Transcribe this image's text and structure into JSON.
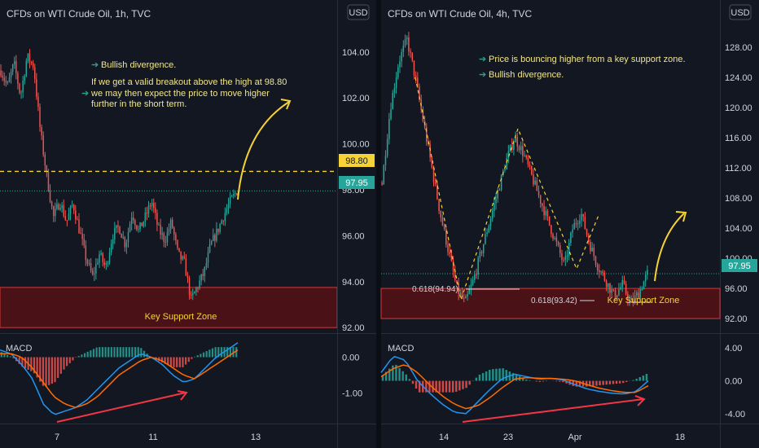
{
  "colors": {
    "bg": "#131722",
    "panel_border": "#2a2e39",
    "up": "#26a69a",
    "down": "#ef5350",
    "text": "#d1d4dc",
    "note": "#f0e68c",
    "zone_fill": "#4a1216",
    "zone_stroke": "#d23a3a",
    "price_badge": "#26a69a",
    "level_badge": "#f5d235",
    "macd_line": "#2196f3",
    "signal_line": "#ff6d00",
    "arrow": "#f5d235",
    "div_arrow": "#f23645"
  },
  "left": {
    "title": "CFDs on WTI Crude Oil, 1h, TVC",
    "currency": "USD",
    "price_ticks": [
      "104.00",
      "102.00",
      "100.00",
      "98.00",
      "96.00",
      "94.00",
      "92.00"
    ],
    "level_label": "98.80",
    "price_label": "97.95",
    "macd_label": "MACD",
    "macd_ticks": [
      "0.00",
      "-1.00"
    ],
    "x_ticks": [
      "7",
      "11",
      "13"
    ],
    "note_1": "Bullish divergence.",
    "note_2_line_1": "If we get a valid breakout above the high at 98.80",
    "note_2_line_2": "we may then expect the price to move higher",
    "note_2_line_3": "further in the short term.",
    "zone_label": "Key Support Zone",
    "chart_data": {
      "type": "candlestick",
      "title": "CFDs on WTI Crude Oil, 1h, TVC",
      "y_range": [
        91.9,
        105.2
      ],
      "levels": {
        "resistance": 98.8,
        "last_price": 97.95
      },
      "support_zone": [
        92.0,
        93.75
      ],
      "close_path": [
        103.2,
        102.5,
        103.5,
        102.1,
        103.8,
        103.4,
        100.6,
        98.6,
        96.8,
        97.5,
        96.6,
        97.4,
        96.2,
        95.0,
        94.2,
        95.2,
        94.6,
        96.0,
        96.4,
        95.6,
        97.0,
        96.2,
        96.8,
        97.5,
        96.3,
        95.8,
        96.6,
        95.2,
        94.8,
        93.2,
        93.8,
        94.4,
        95.6,
        96.2,
        96.9,
        97.5,
        97.95
      ],
      "macd_range": [
        -1.8,
        0.6
      ],
      "macd_path": [
        0.2,
        0.1,
        -0.2,
        -0.6,
        -1.3,
        -1.6,
        -1.5,
        -1.4,
        -1.2,
        -0.9,
        -0.6,
        -0.3,
        -0.1,
        0.1,
        0.0,
        -0.2,
        -0.5,
        -0.7,
        -0.6,
        -0.3,
        0.0,
        0.2,
        0.4
      ],
      "signal_path": [
        0.1,
        0.1,
        0.0,
        -0.3,
        -0.7,
        -1.1,
        -1.3,
        -1.4,
        -1.3,
        -1.1,
        -0.8,
        -0.5,
        -0.3,
        -0.1,
        0.0,
        -0.1,
        -0.3,
        -0.5,
        -0.6,
        -0.4,
        -0.2,
        0.0,
        0.2
      ]
    }
  },
  "right": {
    "title": "CFDs on WTI Crude Oil, 4h, TVC",
    "currency": "USD",
    "price_ticks": [
      "128.00",
      "124.00",
      "120.00",
      "116.00",
      "112.00",
      "108.00",
      "104.00",
      "100.00",
      "96.00",
      "92.00"
    ],
    "price_label": "97.95",
    "macd_label": "MACD",
    "macd_ticks": [
      "4.00",
      "0.00",
      "-4.00"
    ],
    "x_ticks": [
      "14",
      "23",
      "Apr",
      "18"
    ],
    "note_1": "Price is bouncing higher from a key support zone.",
    "note_2": "Bullish divergence.",
    "fib_1": "0.618(94.94)",
    "fib_2": "0.618(93.42)",
    "zone_label": "Key Support Zone",
    "chart_data": {
      "type": "candlestick",
      "title": "CFDs on WTI Crude Oil, 4h, TVC",
      "y_range": [
        90.5,
        131.0
      ],
      "levels": {
        "last_price": 97.95
      },
      "support_zone": [
        92.0,
        96.0
      ],
      "fib_levels": [
        94.94,
        93.42
      ],
      "close_path": [
        110.0,
        120.0,
        126.0,
        129.0,
        124.0,
        118.0,
        112.0,
        106.0,
        101.0,
        96.0,
        94.0,
        97.0,
        101.0,
        105.0,
        109.0,
        113.0,
        116.0,
        114.0,
        111.0,
        108.0,
        105.0,
        102.0,
        99.0,
        104.0,
        106.0,
        102.0,
        99.0,
        97.0,
        95.0,
        96.5,
        94.0,
        95.5,
        97.95
      ],
      "macd_range": [
        -5.0,
        5.5
      ],
      "macd_path": [
        1.0,
        3.0,
        2.5,
        0.0,
        -1.5,
        -2.8,
        -3.8,
        -4.0,
        -2.5,
        -1.0,
        0.3,
        0.8,
        0.5,
        0.2,
        0.3,
        0.1,
        -0.5,
        -1.0,
        -1.3,
        -1.5,
        -1.6,
        -1.3,
        0.0
      ],
      "signal_path": [
        0.5,
        1.5,
        2.0,
        1.0,
        -0.5,
        -1.8,
        -2.8,
        -3.4,
        -3.0,
        -2.0,
        -0.8,
        0.2,
        0.4,
        0.3,
        0.3,
        0.2,
        0.0,
        -0.5,
        -0.9,
        -1.2,
        -1.4,
        -1.4,
        -0.6
      ]
    }
  }
}
